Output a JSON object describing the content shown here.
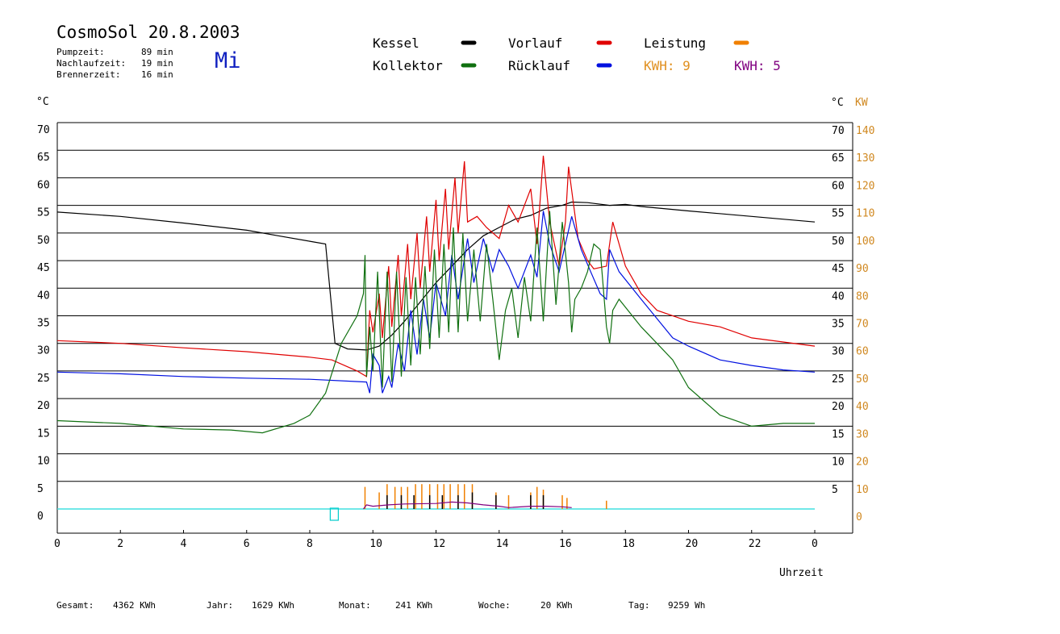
{
  "header": {
    "title": "CosmoSol 20.8.2003",
    "day": "Mi",
    "stats": [
      {
        "label": "Pumpzeit:",
        "value": "89 min"
      },
      {
        "label": "Nachlaufzeit:",
        "value": "19 min"
      },
      {
        "label": "Brennerzeit:",
        "value": "16 min"
      }
    ]
  },
  "legend": {
    "items": [
      {
        "name": "Kessel",
        "color": "#000000"
      },
      {
        "name": "Vorlauf",
        "color": "#e00000"
      },
      {
        "name": "Leistung",
        "color": "#f08000"
      },
      {
        "name": "Kollektor",
        "color": "#107010"
      },
      {
        "name": "Rücklauf",
        "color": "#0010e0"
      }
    ],
    "kwh": [
      {
        "label": "KWH: 9",
        "color": "#e09020"
      },
      {
        "label": "KWH: 5",
        "color": "#800080"
      }
    ]
  },
  "footer": [
    {
      "label": "Gesamt:",
      "value": "4362 KWh"
    },
    {
      "label": "Jahr:",
      "value": "1629 KWh"
    },
    {
      "label": "Monat:",
      "value": "241 KWh"
    },
    {
      "label": "Woche:",
      "value": "20 KWh"
    },
    {
      "label": "Tag:",
      "value": "9259 Wh"
    }
  ],
  "chart_data": {
    "type": "line",
    "xlabel": "Uhrzeit",
    "ylabel_left": "°C",
    "ylabel_right_temp": "°C",
    "ylabel_right_power": "KW",
    "xlim": [
      0,
      24
    ],
    "ylim": [
      0,
      70
    ],
    "y2lim": [
      0,
      140
    ],
    "x_ticks": [
      "0",
      "2",
      "4",
      "6",
      "8",
      "10",
      "12",
      "14",
      "16",
      "18",
      "20",
      "22",
      "0"
    ],
    "y_ticks": [
      "0",
      "5",
      "10",
      "15",
      "20",
      "25",
      "30",
      "35",
      "40",
      "45",
      "50",
      "55",
      "60",
      "65",
      "70"
    ],
    "y_ticks_right": [
      "5",
      "10",
      "15",
      "20",
      "25",
      "30",
      "35",
      "40",
      "45",
      "50",
      "55",
      "60",
      "65",
      "70"
    ],
    "y2_ticks": [
      "0",
      "10",
      "20",
      "30",
      "40",
      "50",
      "60",
      "70",
      "80",
      "90",
      "100",
      "110",
      "120",
      "130",
      "140"
    ],
    "grid": true,
    "series": [
      {
        "name": "Kessel",
        "color": "#000000",
        "points": [
          [
            0,
            53.8
          ],
          [
            2,
            53
          ],
          [
            4,
            51.8
          ],
          [
            6,
            50.5
          ],
          [
            7,
            49.5
          ],
          [
            8,
            48.5
          ],
          [
            8.5,
            48
          ],
          [
            8.8,
            30
          ],
          [
            9.2,
            29
          ],
          [
            9.8,
            28.8
          ],
          [
            10.2,
            29.5
          ],
          [
            10.6,
            31.5
          ],
          [
            11,
            34
          ],
          [
            11.5,
            37.5
          ],
          [
            12,
            41
          ],
          [
            12.5,
            44
          ],
          [
            13,
            47
          ],
          [
            13.5,
            49.5
          ],
          [
            14,
            51
          ],
          [
            14.5,
            52.5
          ],
          [
            15,
            53.2
          ],
          [
            15.5,
            54.5
          ],
          [
            16,
            55
          ],
          [
            16.3,
            55.6
          ],
          [
            16.8,
            55.5
          ],
          [
            17.5,
            55
          ],
          [
            18,
            55.2
          ],
          [
            18.5,
            54.8
          ],
          [
            20,
            54
          ],
          [
            22,
            53
          ],
          [
            24,
            52
          ]
        ]
      },
      {
        "name": "Vorlauf",
        "color": "#e00000",
        "points": [
          [
            0,
            30.5
          ],
          [
            2,
            30
          ],
          [
            4,
            29.2
          ],
          [
            6,
            28.5
          ],
          [
            8,
            27.5
          ],
          [
            8.7,
            27
          ],
          [
            9.5,
            25
          ],
          [
            9.8,
            24
          ],
          [
            9.9,
            36
          ],
          [
            10,
            32
          ],
          [
            10.2,
            39
          ],
          [
            10.3,
            31
          ],
          [
            10.5,
            44
          ],
          [
            10.6,
            33
          ],
          [
            10.8,
            46
          ],
          [
            10.9,
            35
          ],
          [
            11.1,
            48
          ],
          [
            11.2,
            38
          ],
          [
            11.4,
            50
          ],
          [
            11.5,
            40
          ],
          [
            11.7,
            53
          ],
          [
            11.8,
            43
          ],
          [
            12,
            56
          ],
          [
            12.1,
            45
          ],
          [
            12.3,
            58
          ],
          [
            12.4,
            47
          ],
          [
            12.6,
            60
          ],
          [
            12.7,
            50
          ],
          [
            12.9,
            63
          ],
          [
            13.0,
            52
          ],
          [
            13.3,
            53
          ],
          [
            13.6,
            51
          ],
          [
            14,
            49
          ],
          [
            14.3,
            55
          ],
          [
            14.6,
            52
          ],
          [
            15,
            58
          ],
          [
            15.2,
            48
          ],
          [
            15.4,
            64
          ],
          [
            15.6,
            52
          ],
          [
            15.9,
            44
          ],
          [
            16.1,
            52
          ],
          [
            16.2,
            62
          ],
          [
            16.5,
            49
          ],
          [
            16.8,
            45
          ],
          [
            17,
            43.5
          ],
          [
            17.4,
            44
          ],
          [
            17.6,
            52
          ],
          [
            18,
            44
          ],
          [
            18.5,
            39
          ],
          [
            19,
            36
          ],
          [
            20,
            34
          ],
          [
            21,
            33
          ],
          [
            22,
            31
          ],
          [
            24,
            29.5
          ]
        ]
      },
      {
        "name": "Rücklauf",
        "color": "#0010e0",
        "points": [
          [
            0,
            24.8
          ],
          [
            2,
            24.5
          ],
          [
            4,
            24
          ],
          [
            6,
            23.7
          ],
          [
            8,
            23.5
          ],
          [
            9.8,
            23
          ],
          [
            9.9,
            21
          ],
          [
            10,
            28
          ],
          [
            10.2,
            26
          ],
          [
            10.3,
            21
          ],
          [
            10.5,
            24
          ],
          [
            10.6,
            22
          ],
          [
            10.8,
            30
          ],
          [
            11,
            25
          ],
          [
            11.2,
            36
          ],
          [
            11.4,
            28
          ],
          [
            11.6,
            38
          ],
          [
            11.8,
            31
          ],
          [
            12,
            41
          ],
          [
            12.3,
            35
          ],
          [
            12.5,
            46
          ],
          [
            12.7,
            38
          ],
          [
            13,
            49
          ],
          [
            13.2,
            41
          ],
          [
            13.5,
            49
          ],
          [
            13.8,
            43
          ],
          [
            14,
            47
          ],
          [
            14.3,
            44
          ],
          [
            14.6,
            40
          ],
          [
            15,
            46
          ],
          [
            15.2,
            42
          ],
          [
            15.4,
            54
          ],
          [
            15.6,
            48
          ],
          [
            15.9,
            43
          ],
          [
            16.1,
            48
          ],
          [
            16.3,
            53
          ],
          [
            16.6,
            47
          ],
          [
            16.9,
            43
          ],
          [
            17.2,
            39
          ],
          [
            17.4,
            38
          ],
          [
            17.5,
            47
          ],
          [
            17.8,
            43
          ],
          [
            18.5,
            38
          ],
          [
            19.5,
            31
          ],
          [
            20,
            29.5
          ],
          [
            21,
            27
          ],
          [
            22,
            26
          ],
          [
            23,
            25.2
          ],
          [
            24,
            24.8
          ]
        ]
      },
      {
        "name": "Kollektor",
        "color": "#107010",
        "points": [
          [
            0,
            16
          ],
          [
            2,
            15.5
          ],
          [
            4,
            14.5
          ],
          [
            5.5,
            14.3
          ],
          [
            6.5,
            13.8
          ],
          [
            7.5,
            15.5
          ],
          [
            8,
            17
          ],
          [
            8.5,
            21
          ],
          [
            9,
            30
          ],
          [
            9.5,
            35
          ],
          [
            9.7,
            39
          ],
          [
            9.75,
            46
          ],
          [
            9.8,
            24
          ],
          [
            9.9,
            33
          ],
          [
            10,
            25
          ],
          [
            10.15,
            43
          ],
          [
            10.3,
            22
          ],
          [
            10.45,
            43
          ],
          [
            10.6,
            23
          ],
          [
            10.75,
            43
          ],
          [
            10.9,
            24
          ],
          [
            11.05,
            42
          ],
          [
            11.2,
            26
          ],
          [
            11.35,
            42
          ],
          [
            11.5,
            28
          ],
          [
            11.65,
            44
          ],
          [
            11.8,
            29
          ],
          [
            11.95,
            47
          ],
          [
            12.1,
            31
          ],
          [
            12.25,
            48
          ],
          [
            12.4,
            32
          ],
          [
            12.55,
            51
          ],
          [
            12.7,
            32
          ],
          [
            12.85,
            50
          ],
          [
            13,
            34
          ],
          [
            13.2,
            47
          ],
          [
            13.4,
            34
          ],
          [
            13.6,
            48
          ],
          [
            13.8,
            38
          ],
          [
            14,
            27
          ],
          [
            14.2,
            36
          ],
          [
            14.4,
            40
          ],
          [
            14.6,
            31
          ],
          [
            14.8,
            42
          ],
          [
            15,
            34
          ],
          [
            15.2,
            51
          ],
          [
            15.4,
            34
          ],
          [
            15.6,
            54
          ],
          [
            15.8,
            37
          ],
          [
            16,
            52
          ],
          [
            16.2,
            41
          ],
          [
            16.3,
            32
          ],
          [
            16.4,
            38
          ],
          [
            16.6,
            40
          ],
          [
            16.8,
            43
          ],
          [
            17,
            48
          ],
          [
            17.2,
            47
          ],
          [
            17.4,
            33
          ],
          [
            17.5,
            30
          ],
          [
            17.6,
            36
          ],
          [
            17.8,
            38
          ],
          [
            18.5,
            33
          ],
          [
            19,
            30
          ],
          [
            19.5,
            27
          ],
          [
            20,
            22
          ],
          [
            21,
            17
          ],
          [
            22,
            15
          ],
          [
            23,
            15.5
          ],
          [
            24,
            15.5
          ]
        ]
      },
      {
        "name": "Leistung",
        "color": "#f08000",
        "axis": "y2",
        "type": "spikes",
        "points": [
          [
            9.75,
            8
          ],
          [
            10.2,
            6
          ],
          [
            10.45,
            9
          ],
          [
            10.7,
            8
          ],
          [
            10.9,
            8
          ],
          [
            11.1,
            8
          ],
          [
            11.35,
            9
          ],
          [
            11.55,
            9
          ],
          [
            11.8,
            9
          ],
          [
            12.05,
            9
          ],
          [
            12.25,
            9
          ],
          [
            12.45,
            9
          ],
          [
            12.7,
            9
          ],
          [
            12.9,
            9
          ],
          [
            13.15,
            9
          ],
          [
            13.9,
            6
          ],
          [
            14.3,
            5
          ],
          [
            15.0,
            6
          ],
          [
            15.2,
            8
          ],
          [
            15.4,
            7
          ],
          [
            16.0,
            5
          ],
          [
            16.15,
            4
          ],
          [
            17.4,
            3
          ]
        ]
      },
      {
        "name": "Kessel-Leistung",
        "color": "#000000",
        "axis": "y2",
        "type": "spikes",
        "points": [
          [
            10.45,
            5
          ],
          [
            10.9,
            5
          ],
          [
            11.3,
            5
          ],
          [
            11.8,
            5
          ],
          [
            12.2,
            5
          ],
          [
            12.7,
            5
          ],
          [
            13.15,
            6
          ],
          [
            13.9,
            5
          ],
          [
            15.0,
            5
          ],
          [
            15.4,
            5
          ]
        ]
      },
      {
        "name": "KWH-Purple",
        "color": "#800080",
        "axis": "y2",
        "type": "area_low",
        "points": [
          [
            9.7,
            0
          ],
          [
            9.8,
            1.5
          ],
          [
            10,
            1
          ],
          [
            10.5,
            1.5
          ],
          [
            11,
            1.8
          ],
          [
            12,
            2
          ],
          [
            12.5,
            2.5
          ],
          [
            13,
            2.2
          ],
          [
            13.5,
            1.5
          ],
          [
            14,
            1
          ],
          [
            14.3,
            0.5
          ],
          [
            15,
            1
          ],
          [
            15.5,
            1
          ],
          [
            16,
            0.8
          ],
          [
            16.3,
            0.5
          ]
        ]
      }
    ],
    "annotations": [
      {
        "type": "rect",
        "x": 8.7,
        "color": "#00cccc"
      }
    ],
    "baseline_color": "#40e0e0"
  }
}
